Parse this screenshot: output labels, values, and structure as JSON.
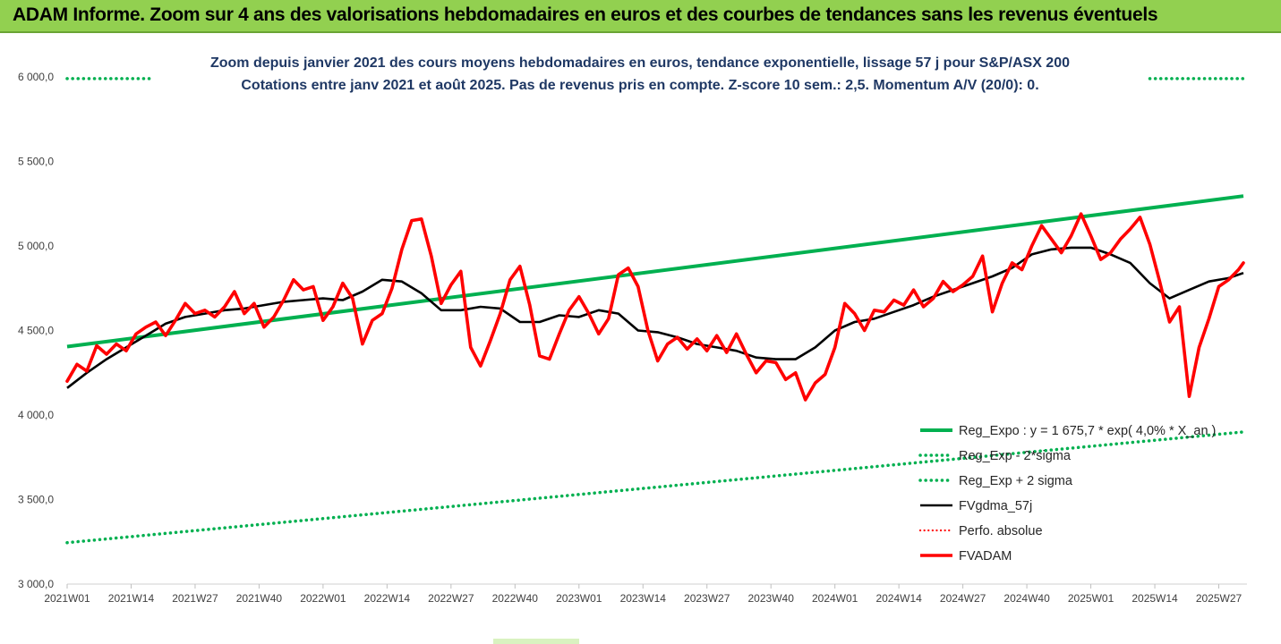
{
  "header": {
    "title": "ADAM Informe. Zoom sur 4 ans des valorisations hebdomadaires en euros et des courbes de tendances sans les revenus éventuels"
  },
  "chart_data": {
    "type": "line",
    "subtitle_line1": "Zoom depuis janvier 2021 des cours moyens hebdomadaires en euros, tendance exponentielle, lissage 57 j pour S&P/ASX 200",
    "subtitle_line2": "Cotations entre janv 2021 et août 2025.  Pas de revenus pris en compte. Z-score 10 sem.: 2,5. Momentum A/V (20/0): 0.",
    "ylim": [
      3000,
      6000
    ],
    "y_ticks": [
      3000,
      3500,
      4000,
      4500,
      5000,
      5500,
      6000
    ],
    "y_tick_labels": [
      "3 000,0",
      "3 500,0",
      "4 000,0",
      "4 500,0",
      "5 000,0",
      "5 500,0",
      "6 000,0"
    ],
    "x_tick_labels": [
      "2021W01",
      "2021W14",
      "2021W27",
      "2021W40",
      "2022W01",
      "2022W14",
      "2022W27",
      "2022W40",
      "2023W01",
      "2023W14",
      "2023W27",
      "2023W40",
      "2024W01",
      "2024W14",
      "2024W27",
      "2024W40",
      "2025W01",
      "2025W14",
      "2025W27"
    ],
    "x_tick_weeks": [
      0,
      13,
      26,
      39,
      52,
      65,
      78,
      91,
      104,
      117,
      130,
      143,
      156,
      169,
      182,
      195,
      208,
      221,
      234
    ],
    "x_max_week": 239,
    "colors": {
      "reg_expo": "#00b050",
      "sigma": "#00b050",
      "fvgdma": "#000000",
      "perfo": "#ff0000",
      "fvadam": "#ff0000"
    },
    "legend": [
      {
        "name": "Reg_Expo : y = 1 675,7 * exp( 4,0% * X_an )",
        "style": "solid-green"
      },
      {
        "name": "Reg_Exp - 2*sigma",
        "style": "dotted-green"
      },
      {
        "name": "Reg_Exp + 2 sigma",
        "style": "dotted-green"
      },
      {
        "name": "FVgdma_57j",
        "style": "solid-black"
      },
      {
        "name": "Perfo. absolue",
        "style": "dotted-red"
      },
      {
        "name": "FVADAM",
        "style": "solid-red"
      }
    ],
    "series": [
      {
        "name": "Reg_Expo : y = 1 675,7 * exp( 4,0% * X_an )",
        "points": [
          [
            0,
            4405
          ],
          [
            239,
            5295
          ]
        ]
      },
      {
        "name": "Reg_Exp - 2*sigma",
        "points": [
          [
            0,
            3245
          ],
          [
            239,
            3900
          ]
        ]
      },
      {
        "name": "Reg_Exp + 2 sigma",
        "points": [
          [
            0,
            5990
          ],
          [
            239,
            5990
          ]
        ]
      },
      {
        "name": "FVgdma_57j",
        "points": [
          [
            0,
            4160
          ],
          [
            4,
            4250
          ],
          [
            8,
            4330
          ],
          [
            12,
            4400
          ],
          [
            16,
            4470
          ],
          [
            20,
            4540
          ],
          [
            24,
            4580
          ],
          [
            28,
            4600
          ],
          [
            32,
            4620
          ],
          [
            36,
            4630
          ],
          [
            40,
            4650
          ],
          [
            44,
            4670
          ],
          [
            48,
            4680
          ],
          [
            52,
            4690
          ],
          [
            56,
            4680
          ],
          [
            60,
            4730
          ],
          [
            64,
            4800
          ],
          [
            68,
            4790
          ],
          [
            72,
            4720
          ],
          [
            76,
            4620
          ],
          [
            80,
            4620
          ],
          [
            84,
            4640
          ],
          [
            88,
            4630
          ],
          [
            92,
            4550
          ],
          [
            96,
            4550
          ],
          [
            100,
            4590
          ],
          [
            104,
            4580
          ],
          [
            108,
            4620
          ],
          [
            112,
            4600
          ],
          [
            116,
            4500
          ],
          [
            120,
            4490
          ],
          [
            124,
            4460
          ],
          [
            128,
            4420
          ],
          [
            132,
            4400
          ],
          [
            136,
            4380
          ],
          [
            140,
            4340
          ],
          [
            144,
            4330
          ],
          [
            148,
            4330
          ],
          [
            152,
            4400
          ],
          [
            156,
            4500
          ],
          [
            160,
            4550
          ],
          [
            164,
            4570
          ],
          [
            168,
            4610
          ],
          [
            172,
            4650
          ],
          [
            176,
            4700
          ],
          [
            180,
            4740
          ],
          [
            184,
            4780
          ],
          [
            188,
            4820
          ],
          [
            192,
            4870
          ],
          [
            196,
            4950
          ],
          [
            200,
            4980
          ],
          [
            204,
            4990
          ],
          [
            208,
            4990
          ],
          [
            212,
            4950
          ],
          [
            216,
            4900
          ],
          [
            220,
            4780
          ],
          [
            224,
            4690
          ],
          [
            228,
            4740
          ],
          [
            232,
            4790
          ],
          [
            236,
            4810
          ],
          [
            239,
            4840
          ]
        ]
      },
      {
        "name": "FVADAM",
        "points": [
          [
            0,
            4200
          ],
          [
            2,
            4300
          ],
          [
            4,
            4260
          ],
          [
            6,
            4410
          ],
          [
            8,
            4360
          ],
          [
            10,
            4420
          ],
          [
            12,
            4380
          ],
          [
            14,
            4480
          ],
          [
            16,
            4520
          ],
          [
            18,
            4550
          ],
          [
            20,
            4470
          ],
          [
            22,
            4560
          ],
          [
            24,
            4660
          ],
          [
            26,
            4600
          ],
          [
            28,
            4620
          ],
          [
            30,
            4580
          ],
          [
            32,
            4640
          ],
          [
            34,
            4730
          ],
          [
            36,
            4600
          ],
          [
            38,
            4660
          ],
          [
            40,
            4520
          ],
          [
            42,
            4580
          ],
          [
            44,
            4680
          ],
          [
            46,
            4800
          ],
          [
            48,
            4740
          ],
          [
            50,
            4760
          ],
          [
            52,
            4560
          ],
          [
            54,
            4640
          ],
          [
            56,
            4780
          ],
          [
            58,
            4690
          ],
          [
            60,
            4420
          ],
          [
            62,
            4560
          ],
          [
            64,
            4600
          ],
          [
            66,
            4750
          ],
          [
            68,
            4980
          ],
          [
            70,
            5150
          ],
          [
            72,
            5160
          ],
          [
            74,
            4940
          ],
          [
            76,
            4660
          ],
          [
            78,
            4770
          ],
          [
            80,
            4850
          ],
          [
            82,
            4400
          ],
          [
            84,
            4290
          ],
          [
            86,
            4440
          ],
          [
            88,
            4600
          ],
          [
            90,
            4800
          ],
          [
            92,
            4880
          ],
          [
            94,
            4650
          ],
          [
            96,
            4350
          ],
          [
            98,
            4330
          ],
          [
            100,
            4480
          ],
          [
            102,
            4620
          ],
          [
            104,
            4700
          ],
          [
            106,
            4600
          ],
          [
            108,
            4480
          ],
          [
            110,
            4570
          ],
          [
            112,
            4830
          ],
          [
            114,
            4870
          ],
          [
            116,
            4760
          ],
          [
            118,
            4500
          ],
          [
            120,
            4320
          ],
          [
            122,
            4420
          ],
          [
            124,
            4460
          ],
          [
            126,
            4390
          ],
          [
            128,
            4450
          ],
          [
            130,
            4380
          ],
          [
            132,
            4470
          ],
          [
            134,
            4370
          ],
          [
            136,
            4480
          ],
          [
            138,
            4360
          ],
          [
            140,
            4250
          ],
          [
            142,
            4320
          ],
          [
            144,
            4310
          ],
          [
            146,
            4210
          ],
          [
            148,
            4250
          ],
          [
            150,
            4090
          ],
          [
            152,
            4190
          ],
          [
            154,
            4240
          ],
          [
            156,
            4400
          ],
          [
            158,
            4660
          ],
          [
            160,
            4600
          ],
          [
            162,
            4500
          ],
          [
            164,
            4620
          ],
          [
            166,
            4610
          ],
          [
            168,
            4680
          ],
          [
            170,
            4650
          ],
          [
            172,
            4740
          ],
          [
            174,
            4640
          ],
          [
            176,
            4690
          ],
          [
            178,
            4790
          ],
          [
            180,
            4730
          ],
          [
            182,
            4770
          ],
          [
            184,
            4820
          ],
          [
            186,
            4940
          ],
          [
            188,
            4610
          ],
          [
            190,
            4780
          ],
          [
            192,
            4900
          ],
          [
            194,
            4860
          ],
          [
            196,
            5000
          ],
          [
            198,
            5120
          ],
          [
            200,
            5040
          ],
          [
            202,
            4960
          ],
          [
            204,
            5060
          ],
          [
            206,
            5190
          ],
          [
            208,
            5060
          ],
          [
            210,
            4920
          ],
          [
            212,
            4960
          ],
          [
            214,
            5040
          ],
          [
            216,
            5100
          ],
          [
            218,
            5170
          ],
          [
            220,
            5010
          ],
          [
            222,
            4790
          ],
          [
            224,
            4550
          ],
          [
            226,
            4640
          ],
          [
            228,
            4110
          ],
          [
            230,
            4400
          ],
          [
            232,
            4570
          ],
          [
            234,
            4760
          ],
          [
            236,
            4800
          ],
          [
            238,
            4860
          ],
          [
            239,
            4900
          ]
        ]
      }
    ]
  }
}
